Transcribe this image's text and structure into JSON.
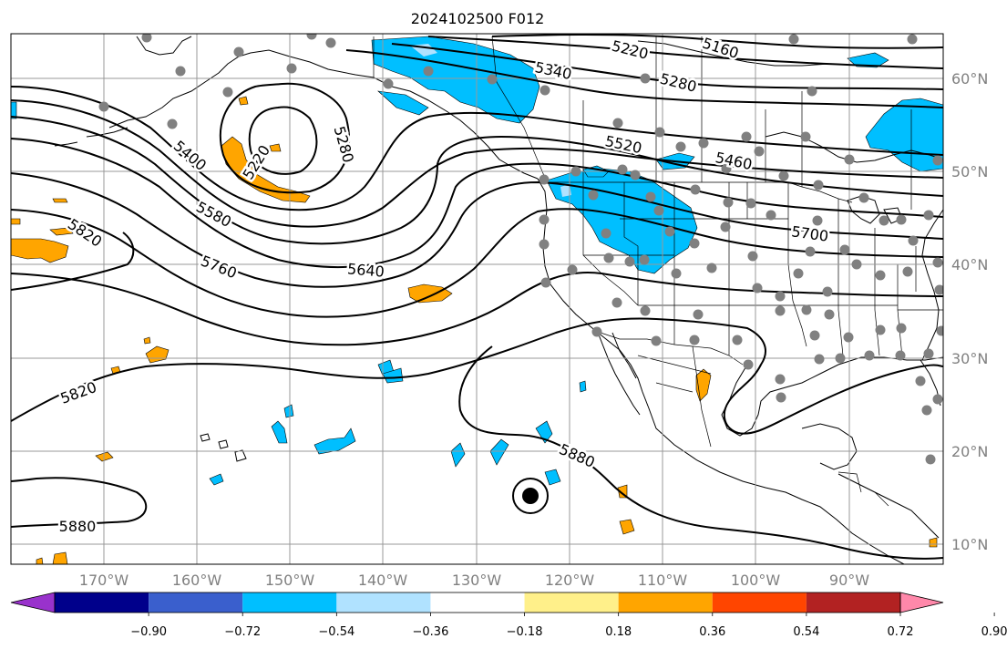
{
  "title": "2024102500 F012",
  "map": {
    "lat_labels": [
      "60°N",
      "50°N",
      "40°N",
      "30°N",
      "20°N",
      "10°N"
    ],
    "lon_labels": [
      "170°W",
      "160°W",
      "150°W",
      "140°W",
      "130°W",
      "120°W",
      "110°W",
      "100°W",
      "90°W"
    ],
    "contour_labels": [
      "5160",
      "5220",
      "5220",
      "5280",
      "5280",
      "5340",
      "5400",
      "5460",
      "5520",
      "5580",
      "5640",
      "5700",
      "5760",
      "5820",
      "5820",
      "5880",
      "5880"
    ],
    "colors": {
      "positive_shade": "#ffa500",
      "negative_shade": "#00bfff",
      "contour": "#000000",
      "station_dot": "#808080",
      "grid": "#999999"
    }
  },
  "colorbar": {
    "colors": [
      "#9932cc",
      "#00008b",
      "#3a5fcd",
      "#00bfff",
      "#b0e2ff",
      "#ffffff",
      "#fff08a",
      "#ffa500",
      "#ff4500",
      "#b22222",
      "#ff88aa"
    ],
    "tick_labels": [
      "−0.90",
      "−0.72",
      "−0.54",
      "−0.36",
      "−0.18",
      "0.18",
      "0.36",
      "0.54",
      "0.72",
      "0.90"
    ]
  }
}
